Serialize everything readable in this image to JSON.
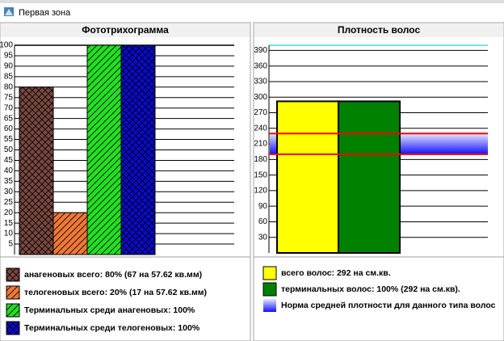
{
  "window_title": "Первая зона",
  "chart_data": [
    {
      "type": "bar",
      "title": "Фототрихограмма",
      "ylim": [
        0,
        100
      ],
      "yticks": [
        5,
        10,
        15,
        20,
        25,
        30,
        35,
        40,
        45,
        50,
        55,
        60,
        65,
        70,
        75,
        80,
        85,
        90,
        95,
        100
      ],
      "grid": true,
      "series": [
        {
          "name": "анагеновых всего: 80% (67 на 57.62 кв.мм)",
          "color": "#7a4840",
          "hatch": "cross",
          "values": [
            80
          ]
        },
        {
          "name": "телогеновых всего: 20% (17 на 57.62 кв.мм)",
          "color": "#f07838",
          "hatch": "diag",
          "values": [
            20
          ]
        },
        {
          "name": "Терминальных среди анагеновых: 100%",
          "color": "#22e022",
          "hatch": "diag",
          "values": [
            100
          ]
        },
        {
          "name": "Терминальных среди телогеновых: 100%",
          "color": "#0a0ad0",
          "hatch": "cross",
          "values": [
            100
          ]
        }
      ]
    },
    {
      "type": "bar",
      "title": "Плотность волос",
      "ylim": [
        0,
        400
      ],
      "yticks": [
        30,
        60,
        90,
        120,
        150,
        180,
        210,
        240,
        270,
        300,
        330,
        360,
        390
      ],
      "grid": true,
      "series": [
        {
          "name": "всего волос: 292 на см.кв.",
          "color": "#ffff00",
          "values": [
            292
          ]
        },
        {
          "name": "терминальных волос: 100% (292 на см.кв).",
          "color": "#008000",
          "values": [
            292
          ]
        }
      ],
      "norm_band": {
        "name": "Норма средней плотности для данного типа волос",
        "range": [
          190,
          230
        ],
        "color": "#1010ff",
        "line_color": "#ff0000"
      }
    }
  ]
}
